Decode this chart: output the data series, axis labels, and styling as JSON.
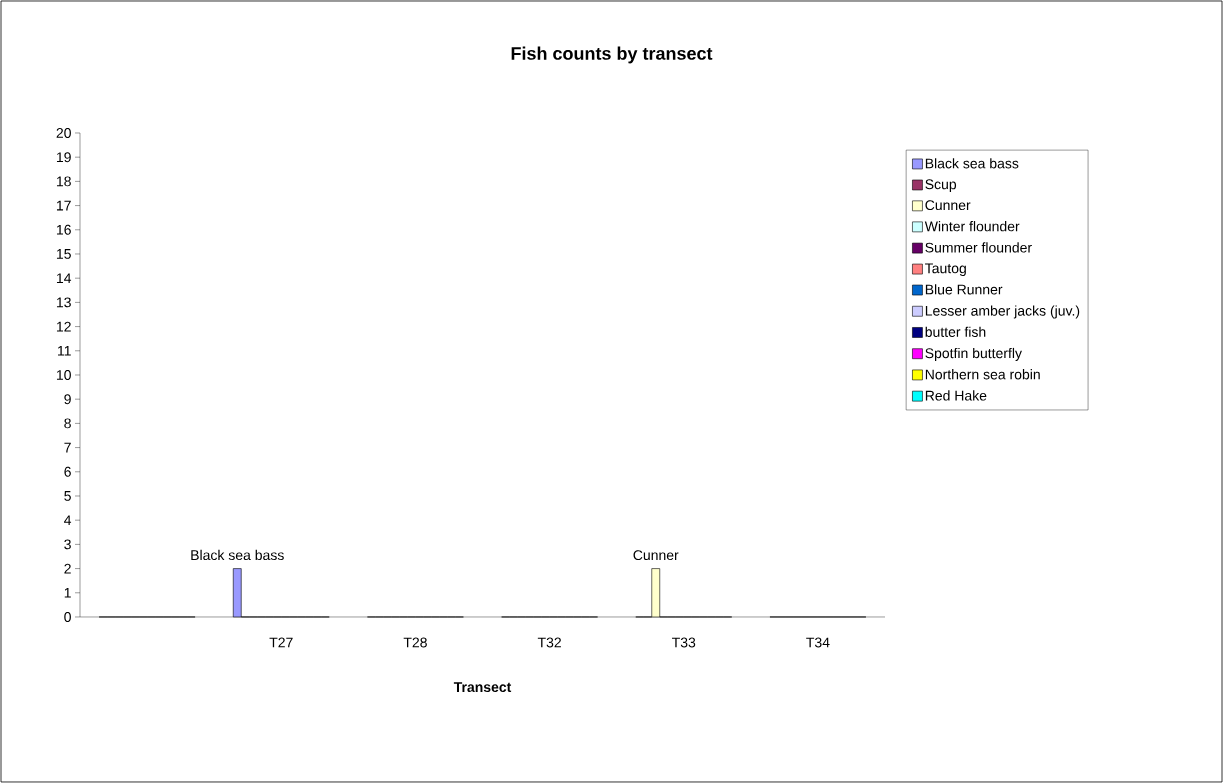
{
  "chart_data": {
    "type": "bar",
    "title": "Fish counts by transect",
    "xlabel": "Transect",
    "categories": [
      null,
      "T27",
      "T28",
      "T32",
      "T33",
      "T34"
    ],
    "series": [
      {
        "name": "Black sea bass",
        "color": "#9999ff",
        "values": [
          0,
          2,
          0,
          0,
          0,
          0
        ],
        "value_labels": [
          null,
          "Black sea bass",
          null,
          null,
          null,
          null
        ]
      },
      {
        "name": "Scup",
        "color": "#993366",
        "values": [
          0,
          0,
          0,
          0,
          0,
          0
        ]
      },
      {
        "name": "Cunner",
        "color": "#ffffcc",
        "values": [
          0,
          0,
          0,
          0,
          2,
          0
        ],
        "value_labels": [
          null,
          null,
          null,
          null,
          "Cunner",
          null
        ]
      },
      {
        "name": "Winter flounder",
        "color": "#ccffff",
        "values": [
          0,
          0,
          0,
          0,
          0,
          0
        ]
      },
      {
        "name": "Summer flounder",
        "color": "#660066",
        "values": [
          0,
          0,
          0,
          0,
          0,
          0
        ]
      },
      {
        "name": "Tautog",
        "color": "#ff8080",
        "values": [
          0,
          0,
          0,
          0,
          0,
          0
        ]
      },
      {
        "name": "Blue Runner",
        "color": "#0066cc",
        "values": [
          0,
          0,
          0,
          0,
          0,
          0
        ]
      },
      {
        "name": "Lesser amber jacks (juv.)",
        "color": "#ccccff",
        "values": [
          0,
          0,
          0,
          0,
          0,
          0
        ]
      },
      {
        "name": "butter fish",
        "color": "#000080",
        "values": [
          0,
          0,
          0,
          0,
          0,
          0
        ]
      },
      {
        "name": "Spotfin butterfly",
        "color": "#ff00ff",
        "values": [
          0,
          0,
          0,
          0,
          0,
          0
        ]
      },
      {
        "name": "Northern sea robin",
        "color": "#ffff00",
        "values": [
          0,
          0,
          0,
          0,
          0,
          0
        ]
      },
      {
        "name": "Red Hake",
        "color": "#00ffff",
        "values": [
          0,
          0,
          0,
          0,
          0,
          0
        ]
      }
    ],
    "ylim": [
      0,
      20
    ],
    "yticks": [
      0,
      1,
      2,
      3,
      4,
      5,
      6,
      7,
      8,
      9,
      10,
      11,
      12,
      13,
      14,
      15,
      16,
      17,
      18,
      19,
      20
    ],
    "legend": "right",
    "grid": false
  }
}
